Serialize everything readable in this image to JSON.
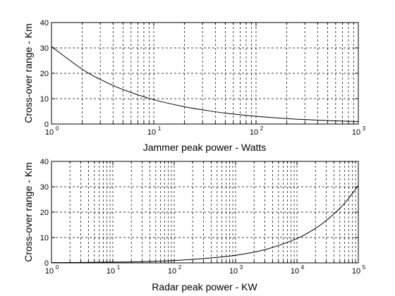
{
  "chart_data": [
    {
      "type": "line",
      "xscale": "log",
      "xlabel": "Jammer peak power - Watts",
      "ylabel": "Cross-over range - Km",
      "xlim": [
        1,
        1000
      ],
      "ylim": [
        0,
        40
      ],
      "grid": true,
      "x_tick_labels": [
        {
          "base": "10",
          "exp": "0",
          "value": 1
        },
        {
          "base": "10",
          "exp": "1",
          "value": 10
        },
        {
          "base": "10",
          "exp": "2",
          "value": 100
        },
        {
          "base": "10",
          "exp": "3",
          "value": 1000
        }
      ],
      "y_tick_labels": [
        "0",
        "10",
        "20",
        "30",
        "40"
      ],
      "y_ticks": [
        0,
        10,
        20,
        30,
        40
      ],
      "series": [
        {
          "x": [
            1,
            2,
            3,
            5,
            10,
            20,
            30,
            50,
            100,
            200,
            300,
            500,
            1000
          ],
          "y": [
            30.5,
            21.6,
            17.6,
            13.6,
            9.6,
            6.8,
            5.6,
            4.3,
            3.05,
            2.16,
            1.76,
            1.36,
            0.96
          ]
        }
      ]
    },
    {
      "type": "line",
      "xscale": "log",
      "xlabel": "Radar peak power - KW",
      "ylabel": "Cross-over range - Km",
      "xlim": [
        1,
        100000
      ],
      "ylim": [
        0,
        40
      ],
      "grid": true,
      "x_tick_labels": [
        {
          "base": "10",
          "exp": "0",
          "value": 1
        },
        {
          "base": "10",
          "exp": "1",
          "value": 10
        },
        {
          "base": "10",
          "exp": "2",
          "value": 100
        },
        {
          "base": "10",
          "exp": "3",
          "value": 1000
        },
        {
          "base": "10",
          "exp": "4",
          "value": 10000
        },
        {
          "base": "10",
          "exp": "5",
          "value": 100000
        }
      ],
      "y_tick_labels": [
        "0",
        "10",
        "20",
        "30",
        "40"
      ],
      "y_ticks": [
        0,
        10,
        20,
        30,
        40
      ],
      "series": [
        {
          "x": [
            1,
            3,
            10,
            30,
            100,
            300,
            1000,
            3000,
            10000,
            20000,
            30000,
            50000,
            70000,
            100000
          ],
          "y": [
            0.1,
            0.17,
            0.3,
            0.5,
            0.95,
            1.7,
            3.0,
            5.2,
            9.6,
            13.6,
            16.7,
            21.5,
            25.5,
            30.5
          ]
        }
      ]
    }
  ]
}
